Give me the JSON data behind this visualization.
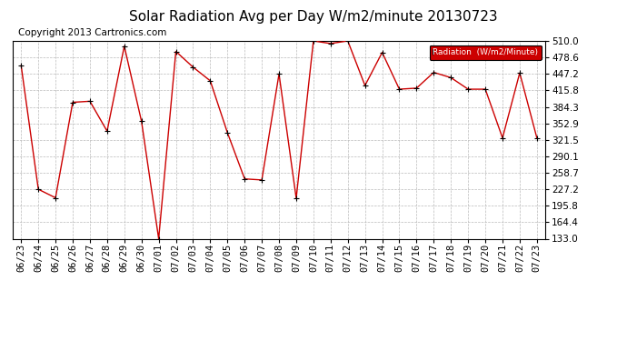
{
  "title": "Solar Radiation Avg per Day W/m2/minute 20130723",
  "copyright": "Copyright 2013 Cartronics.com",
  "legend_label": "Radiation  (W/m2/Minute)",
  "labels": [
    "06/23",
    "06/24",
    "06/25",
    "06/26",
    "06/27",
    "06/28",
    "06/29",
    "06/30",
    "07/01",
    "07/02",
    "07/03",
    "07/04",
    "07/05",
    "07/06",
    "07/07",
    "07/08",
    "07/09",
    "07/10",
    "07/11",
    "07/12",
    "07/13",
    "07/14",
    "07/15",
    "07/16",
    "07/17",
    "07/18",
    "07/19",
    "07/20",
    "07/21",
    "07/22",
    "07/23"
  ],
  "values": [
    463.0,
    227.2,
    211.0,
    393.0,
    395.0,
    338.0,
    500.0,
    357.0,
    133.0,
    490.0,
    460.0,
    434.0,
    335.0,
    247.0,
    245.0,
    447.0,
    210.0,
    510.0,
    505.0,
    510.0,
    425.0,
    488.0,
    418.0,
    420.0,
    450.0,
    440.0,
    418.0,
    418.0,
    325.0,
    449.0,
    325.0
  ],
  "ymin": 133.0,
  "ymax": 510.0,
  "yticks": [
    133.0,
    164.4,
    195.8,
    227.2,
    258.7,
    290.1,
    321.5,
    352.9,
    384.3,
    415.8,
    447.2,
    478.6,
    510.0
  ],
  "line_color": "#cc0000",
  "marker_color": "#000000",
  "bg_color": "#ffffff",
  "grid_color": "#bbbbbb",
  "legend_bg": "#cc0000",
  "legend_text_color": "#ffffff",
  "title_fontsize": 11,
  "copyright_fontsize": 7.5,
  "tick_fontsize": 7.5
}
